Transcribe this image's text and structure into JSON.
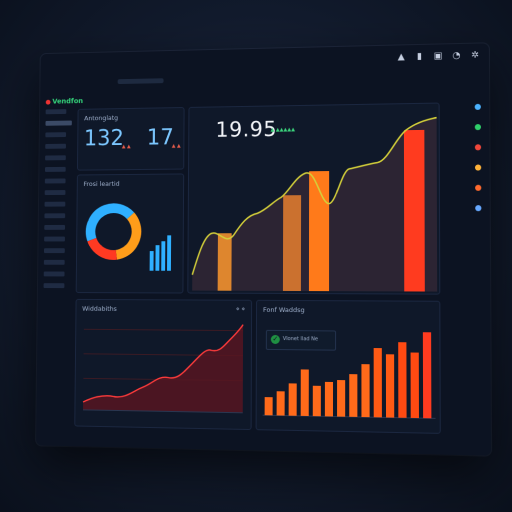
{
  "brand": {
    "name": "Vendfon"
  },
  "kpis": [
    {
      "value": "132",
      "badge": "▲ ▲"
    },
    {
      "value": "17",
      "badge": "▲ ▲"
    }
  ],
  "panels": {
    "top_left_title": "Antonglatg",
    "donut_title": "Frosi leartid",
    "main": {
      "value": "19.95",
      "badge": "▲ ▲▲▲▲▲"
    },
    "bottom_left_title": "Widdabiths",
    "bottom_right_title": "Fonf Waddsg",
    "legend_text": "Vlonet llad Ne"
  },
  "icons": [
    "triangle-icon",
    "doc-icon",
    "image-icon",
    "bell-icon",
    "settings-icon"
  ],
  "rail_colors": [
    "#4bb2ff",
    "#2fcf6a",
    "#f0473b",
    "#ffb23a",
    "#ff6a2e",
    "#66a8ff"
  ],
  "colors": {
    "accent_blue": "#3aa6ff",
    "accent_orange": "#ff8a1e",
    "accent_red": "#ff3b1f",
    "line_yellow": "#d4d03a",
    "donut_blue": "#2fb0ff",
    "donut_orange": "#ff9d1a",
    "donut_red": "#ff3a22"
  }
}
